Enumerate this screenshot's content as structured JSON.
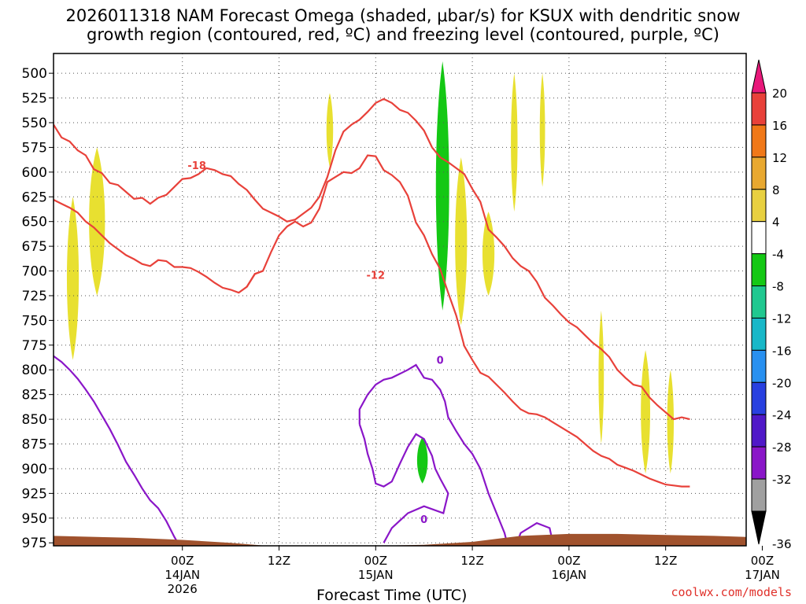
{
  "title": {
    "line1": "2026011318 NAM Forecast Omega (shaded, μbar/s) for KSUX with dendritic snow",
    "line2": "growth region (contoured, red, ºC) and freezing level (contoured, purple, ºC)"
  },
  "credit": "coolwx.com/models",
  "colors": {
    "dgz": "#e8413a",
    "freezing": "#8a16c8",
    "terrain": "#a0522d",
    "yellow": "#e8e030",
    "green": "#14c814"
  },
  "chart_data": {
    "type": "contour",
    "xlabel": "Forecast Time (UTC)",
    "xlim": [
      -10,
      76
    ],
    "ylim": [
      978,
      480
    ],
    "x_ticks": [
      {
        "x": 6,
        "label": "00Z",
        "sub1": "14JAN",
        "sub2": "2026"
      },
      {
        "x": 18,
        "label": "12Z",
        "sub1": "",
        "sub2": ""
      },
      {
        "x": 30,
        "label": "00Z",
        "sub1": "15JAN",
        "sub2": ""
      },
      {
        "x": 42,
        "label": "12Z",
        "sub1": "",
        "sub2": ""
      },
      {
        "x": 54,
        "label": "00Z",
        "sub1": "16JAN",
        "sub2": ""
      },
      {
        "x": 66,
        "label": "12Z",
        "sub1": "",
        "sub2": ""
      },
      {
        "x": 78,
        "label": "00Z",
        "sub1": "17JAN",
        "sub2": ""
      }
    ],
    "y_ticks": [
      500,
      525,
      550,
      575,
      600,
      625,
      650,
      675,
      700,
      725,
      750,
      775,
      800,
      825,
      850,
      875,
      900,
      925,
      950,
      975
    ],
    "colorbar": {
      "labels": [
        "20",
        "16",
        "12",
        "8",
        "4",
        "-4",
        "-8",
        "-12",
        "-16",
        "-20",
        "-24",
        "-28",
        "-32",
        "-36"
      ],
      "colors": [
        "#e8413a",
        "#f07818",
        "#e8a830",
        "#e8d040",
        "#ffffff",
        "#14c814",
        "#20c890",
        "#18b8c8",
        "#2890f0",
        "#2840e0",
        "#5018c8",
        "#8a16c8",
        "#a0a0a0"
      ]
    },
    "series": [
      {
        "name": "-18",
        "kind": "dgz",
        "label_at": [
          [
            7.8,
            593
          ]
        ],
        "points": [
          [
            -10,
            552
          ],
          [
            -9,
            565
          ],
          [
            -8,
            569
          ],
          [
            -7,
            578
          ],
          [
            -6,
            583
          ],
          [
            -5,
            597
          ],
          [
            -4,
            601
          ],
          [
            -3,
            611
          ],
          [
            -2,
            613
          ],
          [
            -1,
            620
          ],
          [
            0,
            627
          ],
          [
            1,
            626
          ],
          [
            2,
            632
          ],
          [
            3,
            626
          ],
          [
            4,
            623
          ],
          [
            5,
            615
          ],
          [
            6,
            607
          ],
          [
            7,
            606
          ],
          [
            8,
            602
          ],
          [
            9,
            596
          ],
          [
            10,
            598
          ],
          [
            11,
            602
          ],
          [
            12,
            604
          ],
          [
            13,
            612
          ],
          [
            14,
            618
          ],
          [
            15,
            628
          ],
          [
            16,
            637
          ],
          [
            17,
            641
          ],
          [
            18,
            645
          ],
          [
            19,
            650
          ],
          [
            20,
            648
          ],
          [
            21,
            642
          ],
          [
            22,
            636
          ],
          [
            23,
            625
          ],
          [
            24,
            605
          ],
          [
            25,
            578
          ],
          [
            26,
            559
          ],
          [
            27,
            552
          ],
          [
            28,
            547
          ],
          [
            29,
            539
          ],
          [
            30,
            530
          ],
          [
            31,
            526
          ],
          [
            32,
            530
          ],
          [
            33,
            537
          ],
          [
            34,
            540
          ],
          [
            35,
            548
          ],
          [
            36,
            558
          ],
          [
            37,
            575
          ],
          [
            38,
            585
          ],
          [
            39,
            590
          ],
          [
            40,
            596
          ],
          [
            41,
            602
          ],
          [
            42,
            617
          ],
          [
            43,
            630
          ],
          [
            44,
            658
          ],
          [
            45,
            666
          ],
          [
            46,
            675
          ],
          [
            47,
            687
          ],
          [
            48,
            695
          ],
          [
            49,
            700
          ],
          [
            50,
            711
          ],
          [
            51,
            727
          ],
          [
            52,
            735
          ],
          [
            53,
            744
          ],
          [
            54,
            752
          ],
          [
            55,
            757
          ],
          [
            56,
            765
          ],
          [
            57,
            773
          ],
          [
            58,
            779
          ],
          [
            59,
            787
          ],
          [
            60,
            800
          ],
          [
            61,
            808
          ],
          [
            62,
            815
          ],
          [
            63,
            817
          ],
          [
            64,
            828
          ],
          [
            65,
            836
          ],
          [
            66,
            843
          ],
          [
            67,
            850
          ],
          [
            68,
            848
          ],
          [
            69,
            850
          ]
        ],
        "points_b": [
          [
            -10,
            628
          ],
          [
            -9,
            632
          ],
          [
            -8,
            636
          ],
          [
            -7,
            641
          ],
          [
            -6,
            650
          ],
          [
            -5,
            656
          ],
          [
            -4,
            664
          ],
          [
            -3,
            672
          ],
          [
            -2,
            678
          ],
          [
            -1,
            684
          ],
          [
            0,
            688
          ],
          [
            1,
            693
          ],
          [
            2,
            695
          ],
          [
            3,
            689
          ],
          [
            4,
            690
          ],
          [
            5,
            696
          ],
          [
            6,
            696
          ],
          [
            7,
            697
          ],
          [
            8,
            701
          ],
          [
            9,
            706
          ],
          [
            10,
            712
          ],
          [
            11,
            717
          ],
          [
            12,
            719
          ],
          [
            13,
            722
          ],
          [
            14,
            716
          ],
          [
            15,
            703
          ],
          [
            16,
            700
          ],
          [
            17,
            681
          ],
          [
            18,
            664
          ],
          [
            19,
            655
          ],
          [
            20,
            650
          ],
          [
            21,
            655
          ],
          [
            22,
            651
          ],
          [
            23,
            637
          ],
          [
            24,
            610
          ],
          [
            25,
            605
          ],
          [
            26,
            600
          ],
          [
            27,
            601
          ],
          [
            28,
            596
          ],
          [
            29,
            583
          ],
          [
            30,
            584
          ],
          [
            31,
            598
          ],
          [
            32,
            603
          ],
          [
            33,
            610
          ],
          [
            34,
            624
          ],
          [
            35,
            651
          ],
          [
            36,
            664
          ],
          [
            37,
            683
          ],
          [
            38,
            698
          ],
          [
            39,
            722
          ],
          [
            40,
            745
          ],
          [
            41,
            776
          ],
          [
            42,
            790
          ],
          [
            43,
            803
          ],
          [
            44,
            807
          ],
          [
            45,
            815
          ],
          [
            46,
            823
          ],
          [
            47,
            832
          ],
          [
            48,
            840
          ],
          [
            49,
            844
          ],
          [
            50,
            845
          ],
          [
            51,
            848
          ],
          [
            52,
            853
          ],
          [
            53,
            858
          ],
          [
            54,
            863
          ],
          [
            55,
            868
          ],
          [
            56,
            875
          ],
          [
            57,
            882
          ],
          [
            58,
            887
          ],
          [
            59,
            890
          ],
          [
            60,
            896
          ],
          [
            61,
            899
          ],
          [
            62,
            902
          ],
          [
            63,
            906
          ],
          [
            64,
            910
          ],
          [
            65,
            913
          ],
          [
            66,
            916
          ],
          [
            67,
            917
          ],
          [
            68,
            918
          ],
          [
            69,
            918
          ]
        ]
      },
      {
        "name": "-12",
        "kind": "dgz",
        "label_at": [
          [
            30,
            704
          ]
        ],
        "points": [
          [
            14,
            716
          ],
          [
            15,
            703
          ],
          [
            16,
            700
          ]
        ]
      },
      {
        "name": "0",
        "kind": "freezing",
        "label_at": [
          [
            38,
            790
          ],
          [
            36,
            951
          ]
        ],
        "points": [
          [
            -10,
            786
          ],
          [
            -9,
            792
          ],
          [
            -8,
            800
          ],
          [
            -7,
            809
          ],
          [
            -6,
            820
          ],
          [
            -5,
            832
          ],
          [
            -4,
            846
          ],
          [
            -3,
            860
          ],
          [
            -2,
            876
          ],
          [
            -1,
            893
          ],
          [
            0,
            906
          ],
          [
            1,
            920
          ],
          [
            2,
            932
          ],
          [
            3,
            940
          ],
          [
            4,
            953
          ],
          [
            5,
            969
          ],
          [
            6,
            983
          ]
        ]
      },
      {
        "name": "0-b",
        "kind": "freezing",
        "label_at": [],
        "points": [
          [
            28,
            855
          ],
          [
            28,
            840
          ],
          [
            29,
            825
          ],
          [
            30,
            815
          ],
          [
            31,
            810
          ],
          [
            32,
            808
          ],
          [
            33,
            804
          ],
          [
            34,
            800
          ],
          [
            35,
            795
          ],
          [
            36,
            808
          ],
          [
            37,
            810
          ],
          [
            38,
            820
          ],
          [
            38.6,
            832
          ],
          [
            39,
            848
          ],
          [
            40,
            862
          ],
          [
            41,
            875
          ],
          [
            42,
            885
          ],
          [
            43,
            900
          ],
          [
            44,
            925
          ],
          [
            45,
            945
          ],
          [
            46,
            965
          ],
          [
            46.4,
            978
          ]
        ]
      },
      {
        "name": "0-c",
        "kind": "freezing",
        "label_at": [],
        "points": [
          [
            28,
            855
          ],
          [
            28.6,
            870
          ],
          [
            29,
            885
          ],
          [
            29.6,
            900
          ],
          [
            30,
            915
          ],
          [
            31,
            918
          ],
          [
            32,
            913
          ],
          [
            33,
            895
          ],
          [
            34,
            878
          ],
          [
            35,
            865
          ],
          [
            36,
            870
          ],
          [
            37,
            887
          ],
          [
            37.4,
            900
          ],
          [
            38,
            910
          ],
          [
            39,
            925
          ],
          [
            38.4,
            945
          ],
          [
            36,
            938
          ],
          [
            34,
            945
          ],
          [
            32,
            960
          ],
          [
            31,
            975
          ]
        ]
      },
      {
        "name": "0-d",
        "kind": "freezing",
        "label_at": [],
        "points": [
          [
            47.4,
            978
          ],
          [
            48,
            965
          ],
          [
            50,
            955
          ],
          [
            51.6,
            960
          ],
          [
            52,
            975
          ]
        ]
      }
    ],
    "shaded": [
      {
        "color": "#e8e030",
        "value": 4,
        "x": -7.6,
        "p1": 625,
        "p2": 790,
        "w": 0.9
      },
      {
        "color": "#e8e030",
        "value": 4,
        "x": -4.6,
        "p1": 575,
        "p2": 725,
        "w": 1.2
      },
      {
        "color": "#e8e030",
        "value": 4,
        "x": 24.3,
        "p1": 520,
        "p2": 595,
        "w": 0.5
      },
      {
        "color": "#14c814",
        "value": -8,
        "x": 38.3,
        "p1": 488,
        "p2": 740,
        "w": 1.0
      },
      {
        "color": "#e8e030",
        "value": 4,
        "x": 40.6,
        "p1": 585,
        "p2": 755,
        "w": 0.9
      },
      {
        "color": "#e8e030",
        "value": 4,
        "x": 44.0,
        "p1": 640,
        "p2": 725,
        "w": 0.9
      },
      {
        "color": "#e8e030",
        "value": 4,
        "x": 47.2,
        "p1": 500,
        "p2": 640,
        "w": 0.5
      },
      {
        "color": "#e8e030",
        "value": 4,
        "x": 50.7,
        "p1": 500,
        "p2": 615,
        "w": 0.4
      },
      {
        "color": "#e8e030",
        "value": 4,
        "x": 58.0,
        "p1": 740,
        "p2": 875,
        "w": 0.4
      },
      {
        "color": "#e8e030",
        "value": 4,
        "x": 63.5,
        "p1": 780,
        "p2": 905,
        "w": 0.7
      },
      {
        "color": "#e8e030",
        "value": 4,
        "x": 66.6,
        "p1": 800,
        "p2": 905,
        "w": 0.5
      },
      {
        "color": "#14c814",
        "value": -8,
        "x": 35.8,
        "p1": 868,
        "p2": 915,
        "w": 0.8
      }
    ],
    "terrain": [
      [
        -10,
        968
      ],
      [
        0,
        970
      ],
      [
        6,
        972
      ],
      [
        12,
        975
      ],
      [
        18,
        979
      ],
      [
        24,
        980
      ],
      [
        30,
        978
      ],
      [
        36,
        977
      ],
      [
        42,
        974
      ],
      [
        48,
        968
      ],
      [
        54,
        966
      ],
      [
        60,
        966
      ],
      [
        66,
        967
      ],
      [
        72,
        968
      ],
      [
        76,
        969
      ]
    ]
  }
}
